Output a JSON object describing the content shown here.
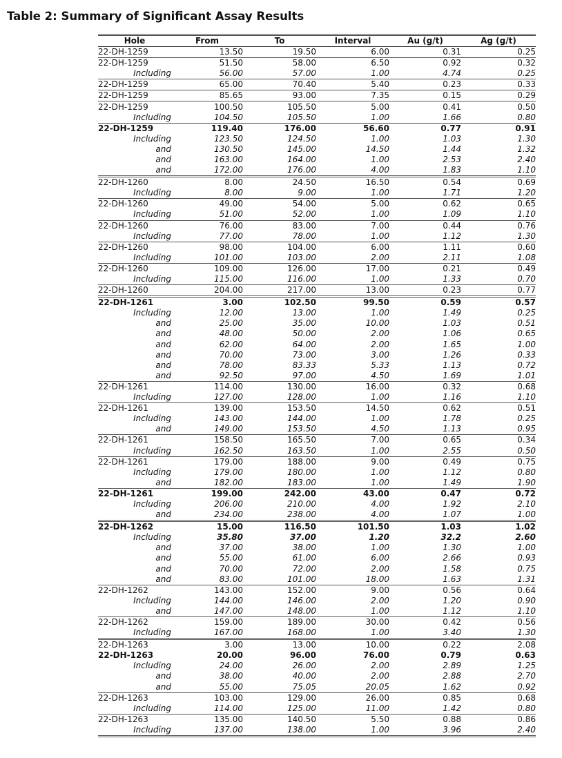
{
  "title": "Table 2: Summary of Significant Assay Results",
  "columns": [
    "Hole",
    "From",
    "To",
    "Interval",
    "Au (g/t)",
    "Ag (g/t)"
  ],
  "groups": [
    {
      "sep": "none",
      "rows": [
        {
          "s": "main",
          "c": [
            "22-DH-1259",
            "13.50",
            "19.50",
            "6.00",
            "0.31",
            "0.25"
          ]
        }
      ]
    },
    {
      "sep": "thin",
      "rows": [
        {
          "s": "main",
          "c": [
            "22-DH-1259",
            "51.50",
            "58.00",
            "6.50",
            "0.92",
            "0.32"
          ]
        },
        {
          "s": "sub",
          "c": [
            "Including",
            "56.00",
            "57.00",
            "1.00",
            "4.74",
            "0.25"
          ]
        }
      ]
    },
    {
      "sep": "thin",
      "rows": [
        {
          "s": "main",
          "c": [
            "22-DH-1259",
            "65.00",
            "70.40",
            "5.40",
            "0.23",
            "0.33"
          ]
        }
      ]
    },
    {
      "sep": "thin",
      "rows": [
        {
          "s": "main",
          "c": [
            "22-DH-1259",
            "85.65",
            "93.00",
            "7.35",
            "0.15",
            "0.29"
          ]
        }
      ]
    },
    {
      "sep": "thin",
      "rows": [
        {
          "s": "main",
          "c": [
            "22-DH-1259",
            "100.50",
            "105.50",
            "5.00",
            "0.41",
            "0.50"
          ]
        },
        {
          "s": "sub",
          "c": [
            "Including",
            "104.50",
            "105.50",
            "1.00",
            "1.66",
            "0.80"
          ]
        }
      ]
    },
    {
      "sep": "thin",
      "rows": [
        {
          "s": "bold",
          "c": [
            "22-DH-1259",
            "119.40",
            "176.00",
            "56.60",
            "0.77",
            "0.91"
          ]
        },
        {
          "s": "sub",
          "c": [
            "Including",
            "123.50",
            "124.50",
            "1.00",
            "1.03",
            "1.30"
          ]
        },
        {
          "s": "sub",
          "c": [
            "and",
            "130.50",
            "145.00",
            "14.50",
            "1.44",
            "1.32"
          ]
        },
        {
          "s": "sub",
          "c": [
            "and",
            "163.00",
            "164.00",
            "1.00",
            "2.53",
            "2.40"
          ]
        },
        {
          "s": "sub",
          "c": [
            "and",
            "172.00",
            "176.00",
            "4.00",
            "1.83",
            "1.10"
          ]
        }
      ]
    },
    {
      "sep": "double",
      "rows": [
        {
          "s": "main",
          "c": [
            "22-DH-1260",
            "8.00",
            "24.50",
            "16.50",
            "0.54",
            "0.69"
          ]
        },
        {
          "s": "sub",
          "c": [
            "Including",
            "8.00",
            "9.00",
            "1.00",
            "1.71",
            "1.20"
          ]
        }
      ]
    },
    {
      "sep": "thin",
      "rows": [
        {
          "s": "main",
          "c": [
            "22-DH-1260",
            "49.00",
            "54.00",
            "5.00",
            "0.62",
            "0.65"
          ]
        },
        {
          "s": "sub",
          "c": [
            "Including",
            "51.00",
            "52.00",
            "1.00",
            "1.09",
            "1.10"
          ]
        }
      ]
    },
    {
      "sep": "thin",
      "rows": [
        {
          "s": "main",
          "c": [
            "22-DH-1260",
            "76.00",
            "83.00",
            "7.00",
            "0.44",
            "0.76"
          ]
        },
        {
          "s": "sub",
          "c": [
            "Including",
            "77.00",
            "78.00",
            "1.00",
            "1.12",
            "1.30"
          ]
        }
      ]
    },
    {
      "sep": "thin",
      "rows": [
        {
          "s": "main",
          "c": [
            "22-DH-1260",
            "98.00",
            "104.00",
            "6.00",
            "1.11",
            "0.60"
          ]
        },
        {
          "s": "sub",
          "c": [
            "Including",
            "101.00",
            "103.00",
            "2.00",
            "2.11",
            "1.08"
          ]
        }
      ]
    },
    {
      "sep": "thin",
      "rows": [
        {
          "s": "main",
          "c": [
            "22-DH-1260",
            "109.00",
            "126.00",
            "17.00",
            "0.21",
            "0.49"
          ]
        },
        {
          "s": "sub",
          "c": [
            "Including",
            "115.00",
            "116.00",
            "1.00",
            "1.33",
            "0.70"
          ]
        }
      ]
    },
    {
      "sep": "thin",
      "rows": [
        {
          "s": "main",
          "c": [
            "22-DH-1260",
            "204.00",
            "217.00",
            "13.00",
            "0.23",
            "0.77"
          ]
        }
      ]
    },
    {
      "sep": "double",
      "rows": [
        {
          "s": "bold",
          "c": [
            "22-DH-1261",
            "3.00",
            "102.50",
            "99.50",
            "0.59",
            "0.57"
          ]
        },
        {
          "s": "sub",
          "c": [
            "Including",
            "12.00",
            "13.00",
            "1.00",
            "1.49",
            "0.25"
          ]
        },
        {
          "s": "sub",
          "c": [
            "and",
            "25.00",
            "35.00",
            "10.00",
            "1.03",
            "0.51"
          ]
        },
        {
          "s": "sub",
          "c": [
            "and",
            "48.00",
            "50.00",
            "2.00",
            "1.06",
            "0.65"
          ]
        },
        {
          "s": "sub",
          "c": [
            "and",
            "62.00",
            "64.00",
            "2.00",
            "1.65",
            "1.00"
          ]
        },
        {
          "s": "sub",
          "c": [
            "and",
            "70.00",
            "73.00",
            "3.00",
            "1.26",
            "0.33"
          ]
        },
        {
          "s": "sub",
          "c": [
            "and",
            "78.00",
            "83.33",
            "5.33",
            "1.13",
            "0.72"
          ]
        },
        {
          "s": "sub",
          "c": [
            "and",
            "92.50",
            "97.00",
            "4.50",
            "1.69",
            "1.01"
          ]
        }
      ]
    },
    {
      "sep": "thin",
      "rows": [
        {
          "s": "main",
          "c": [
            "22-DH-1261",
            "114.00",
            "130.00",
            "16.00",
            "0.32",
            "0.68"
          ]
        },
        {
          "s": "sub",
          "c": [
            "Including",
            "127.00",
            "128.00",
            "1.00",
            "1.16",
            "1.10"
          ]
        }
      ]
    },
    {
      "sep": "thin",
      "rows": [
        {
          "s": "main",
          "c": [
            "22-DH-1261",
            "139.00",
            "153.50",
            "14.50",
            "0.62",
            "0.51"
          ]
        },
        {
          "s": "sub",
          "c": [
            "Including",
            "143.00",
            "144.00",
            "1.00",
            "1.78",
            "0.25"
          ]
        },
        {
          "s": "sub",
          "c": [
            "and",
            "149.00",
            "153.50",
            "4.50",
            "1.13",
            "0.95"
          ]
        }
      ]
    },
    {
      "sep": "thin",
      "rows": [
        {
          "s": "main",
          "c": [
            "22-DH-1261",
            "158.50",
            "165.50",
            "7.00",
            "0.65",
            "0.34"
          ]
        },
        {
          "s": "sub",
          "c": [
            "Including",
            "162.50",
            "163.50",
            "1.00",
            "2.55",
            "0.50"
          ]
        }
      ]
    },
    {
      "sep": "thin",
      "rows": [
        {
          "s": "main",
          "c": [
            "22-DH-1261",
            "179.00",
            "188.00",
            "9.00",
            "0.49",
            "0.75"
          ]
        },
        {
          "s": "sub",
          "c": [
            "Including",
            "179.00",
            "180.00",
            "1.00",
            "1.12",
            "0.80"
          ]
        },
        {
          "s": "sub",
          "c": [
            "and",
            "182.00",
            "183.00",
            "1.00",
            "1.49",
            "1.90"
          ]
        }
      ]
    },
    {
      "sep": "thin",
      "rows": [
        {
          "s": "bold",
          "c": [
            "22-DH-1261",
            "199.00",
            "242.00",
            "43.00",
            "0.47",
            "0.72"
          ]
        },
        {
          "s": "sub",
          "c": [
            "Including",
            "206.00",
            "210.00",
            "4.00",
            "1.92",
            "2.10"
          ]
        },
        {
          "s": "sub",
          "c": [
            "and",
            "234.00",
            "238.00",
            "4.00",
            "1.07",
            "1.00"
          ]
        }
      ]
    },
    {
      "sep": "double",
      "rows": [
        {
          "s": "bold",
          "c": [
            "22-DH-1262",
            "15.00",
            "116.50",
            "101.50",
            "1.03",
            "1.02"
          ]
        },
        {
          "s": "sub subbold",
          "c": [
            "Including",
            "35.80",
            "37.00",
            "1.20",
            "32.2",
            "2.60"
          ]
        },
        {
          "s": "sub",
          "c": [
            "and",
            "37.00",
            "38.00",
            "1.00",
            "1.30",
            "1.00"
          ]
        },
        {
          "s": "sub",
          "c": [
            "and",
            "55.00",
            "61.00",
            "6.00",
            "2.66",
            "0.93"
          ]
        },
        {
          "s": "sub",
          "c": [
            "and",
            "70.00",
            "72.00",
            "2.00",
            "1.58",
            "0.75"
          ]
        },
        {
          "s": "sub",
          "c": [
            "and",
            "83.00",
            "101.00",
            "18.00",
            "1.63",
            "1.31"
          ]
        }
      ]
    },
    {
      "sep": "thin",
      "rows": [
        {
          "s": "main",
          "c": [
            "22-DH-1262",
            "143.00",
            "152.00",
            "9.00",
            "0.56",
            "0.64"
          ]
        },
        {
          "s": "sub",
          "c": [
            "Including",
            "144.00",
            "146.00",
            "2.00",
            "1.20",
            "0.90"
          ]
        },
        {
          "s": "sub",
          "c": [
            "and",
            "147.00",
            "148.00",
            "1.00",
            "1.12",
            "1.10"
          ]
        }
      ]
    },
    {
      "sep": "thin",
      "rows": [
        {
          "s": "main",
          "c": [
            "22-DH-1262",
            "159.00",
            "189.00",
            "30.00",
            "0.42",
            "0.56"
          ]
        },
        {
          "s": "sub",
          "c": [
            "Including",
            "167.00",
            "168.00",
            "1.00",
            "3.40",
            "1.30"
          ]
        }
      ]
    },
    {
      "sep": "double",
      "rows": [
        {
          "s": "main",
          "c": [
            "22-DH-1263",
            "3.00",
            "13.00",
            "10.00",
            "0.22",
            "2.08"
          ]
        }
      ]
    },
    {
      "sep": "none",
      "rows": [
        {
          "s": "bold",
          "c": [
            "22-DH-1263",
            "20.00",
            "96.00",
            "76.00",
            "0.79",
            "0.63"
          ]
        },
        {
          "s": "sub",
          "c": [
            "Including",
            "24.00",
            "26.00",
            "2.00",
            "2.89",
            "1.25"
          ]
        },
        {
          "s": "sub",
          "c": [
            "and",
            "38.00",
            "40.00",
            "2.00",
            "2.88",
            "2.70"
          ]
        },
        {
          "s": "sub",
          "c": [
            "and",
            "55.00",
            "75.05",
            "20.05",
            "1.62",
            "0.92"
          ]
        }
      ]
    },
    {
      "sep": "thin",
      "rows": [
        {
          "s": "main",
          "c": [
            "22-DH-1263",
            "103.00",
            "129.00",
            "26.00",
            "0.85",
            "0.68"
          ]
        },
        {
          "s": "sub",
          "c": [
            "Including",
            "114.00",
            "125.00",
            "11.00",
            "1.42",
            "0.80"
          ]
        }
      ]
    },
    {
      "sep": "thin",
      "rows": [
        {
          "s": "main",
          "c": [
            "22-DH-1263",
            "135.00",
            "140.50",
            "5.50",
            "0.88",
            "0.86"
          ]
        },
        {
          "s": "sub",
          "c": [
            "Including",
            "137.00",
            "138.00",
            "1.00",
            "3.96",
            "2.40"
          ]
        }
      ]
    }
  ]
}
